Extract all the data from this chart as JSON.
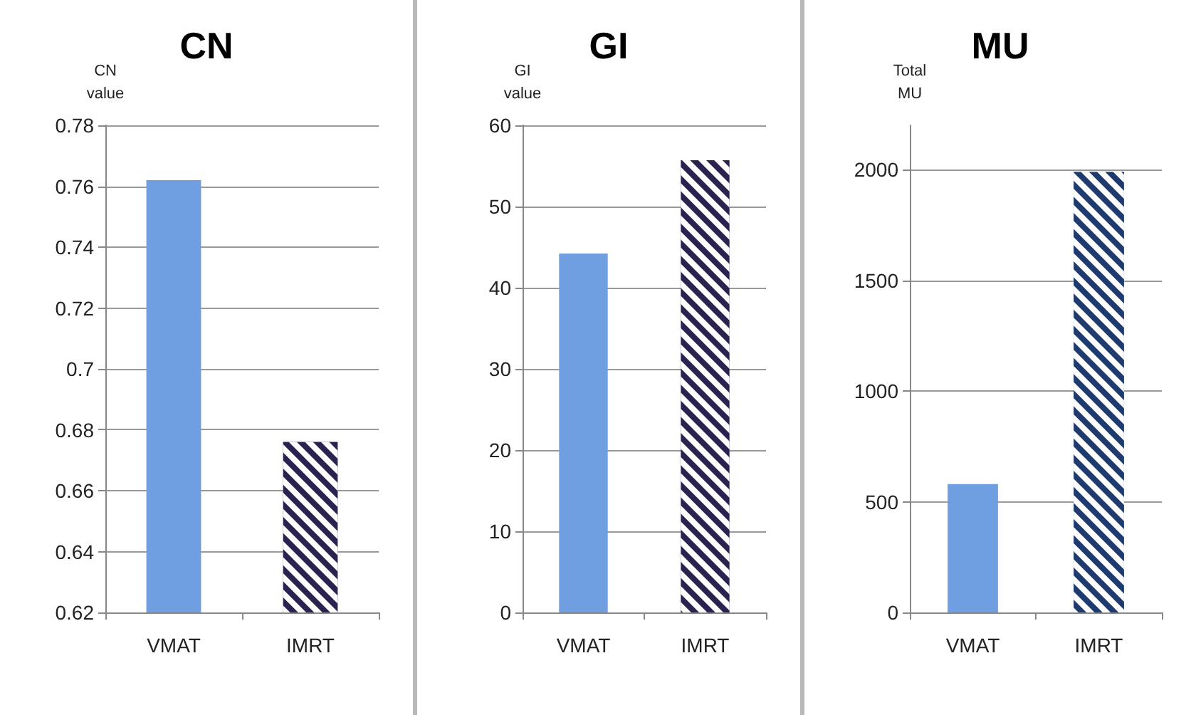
{
  "chart_data": [
    {
      "type": "bar",
      "title": "CN",
      "ylabel": "CN\nvalue",
      "categories": [
        "VMAT",
        "IMRT"
      ],
      "values": [
        0.762,
        0.676
      ],
      "colors": [
        "#6f9fe0",
        "#2a2350"
      ],
      "ylim": [
        0.62,
        0.78
      ],
      "yticks": [
        0.62,
        0.64,
        0.66,
        0.68,
        0.7,
        0.72,
        0.74,
        0.76,
        0.78
      ],
      "grid": "y"
    },
    {
      "type": "bar",
      "title": "GI",
      "ylabel": "GI\nvalue",
      "categories": [
        "VMAT",
        "IMRT"
      ],
      "values": [
        44.2,
        55.7
      ],
      "colors": [
        "#6f9fe0",
        "#2a2350"
      ],
      "ylim": [
        0,
        60
      ],
      "yticks": [
        0,
        10,
        20,
        30,
        40,
        50,
        60
      ],
      "grid": "y"
    },
    {
      "type": "bar",
      "title": "MU",
      "ylabel": "Total\nMU",
      "categories": [
        "VMAT",
        "IMRT"
      ],
      "values": [
        580,
        1990
      ],
      "colors": [
        "#6f9fe0",
        "#1f3a6e"
      ],
      "ylim": [
        0,
        2200
      ],
      "yticks": [
        0,
        500,
        1000,
        1500,
        2000
      ],
      "grid": "y"
    }
  ]
}
